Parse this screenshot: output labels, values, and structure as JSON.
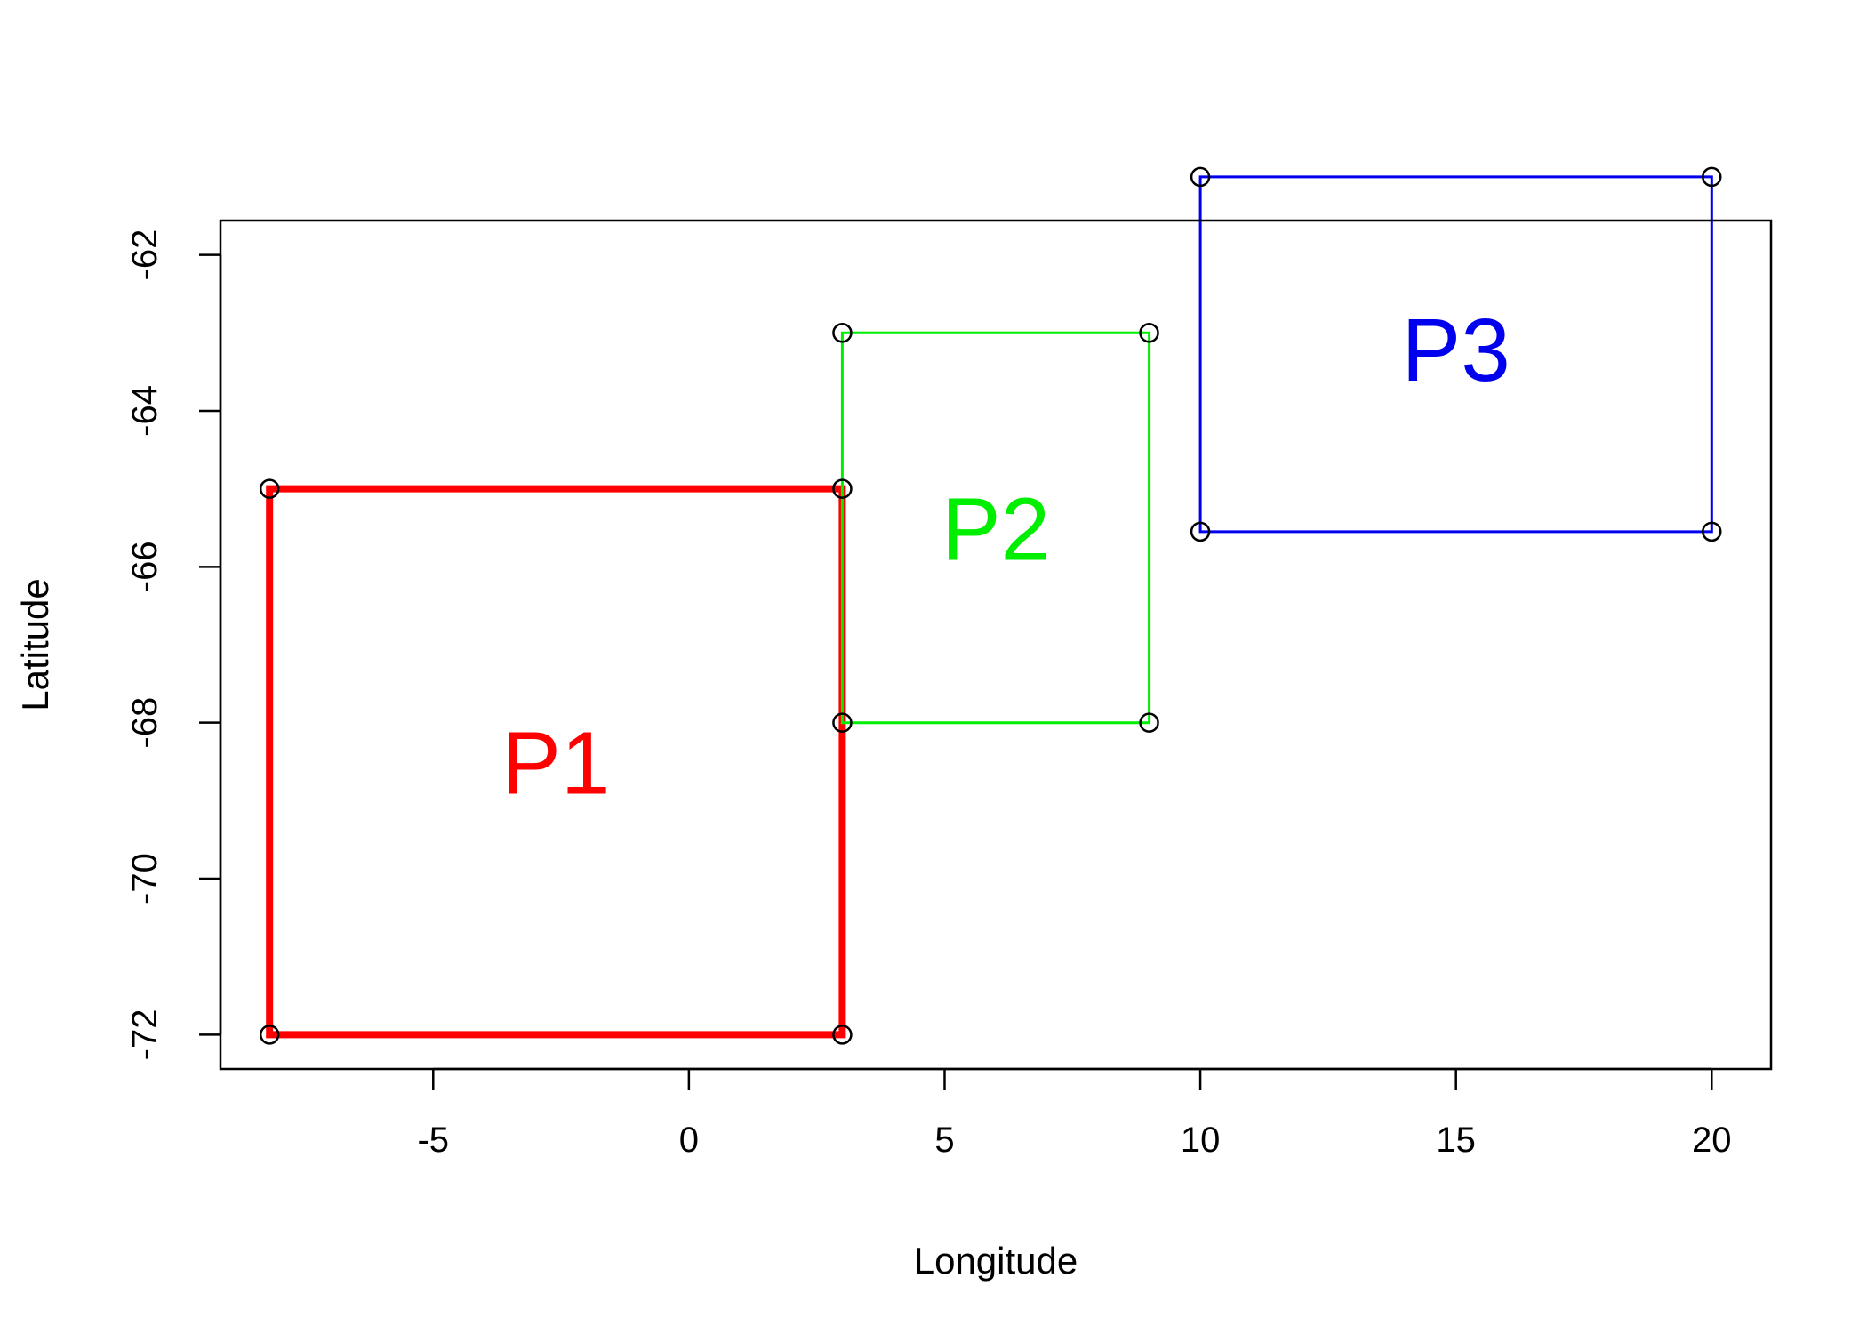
{
  "chart_data": {
    "type": "scatter",
    "title": "",
    "xlabel": "Longitude",
    "ylabel": "Latitude",
    "xlim": [
      -9.16,
      21.16
    ],
    "ylim": [
      -72.44,
      -61.56
    ],
    "x_ticks": [
      -5,
      0,
      5,
      10,
      15,
      20
    ],
    "y_ticks": [
      -72,
      -70,
      -68,
      -66,
      -64,
      -62
    ],
    "grid": false,
    "legend": "none",
    "polygons": [
      {
        "label": "P1",
        "color": "#ff0000",
        "vertices": [
          [
            -8.2,
            -72
          ],
          [
            -8.2,
            -65
          ],
          [
            3,
            -65
          ],
          [
            3,
            -72
          ]
        ],
        "label_pos": [
          -2.6,
          -68.5
        ]
      },
      {
        "label": "P2",
        "color": "#00ee00",
        "vertices": [
          [
            3,
            -68
          ],
          [
            3,
            -63
          ],
          [
            9,
            -63
          ],
          [
            9,
            -68
          ]
        ],
        "label_pos": [
          6,
          -65.5
        ]
      },
      {
        "label": "P3",
        "color": "#0000ee",
        "vertices": [
          [
            10,
            -65.55
          ],
          [
            10,
            -61
          ],
          [
            20,
            -61
          ],
          [
            20,
            -65.55
          ]
        ],
        "label_pos": [
          15,
          -63.2
        ]
      }
    ]
  }
}
